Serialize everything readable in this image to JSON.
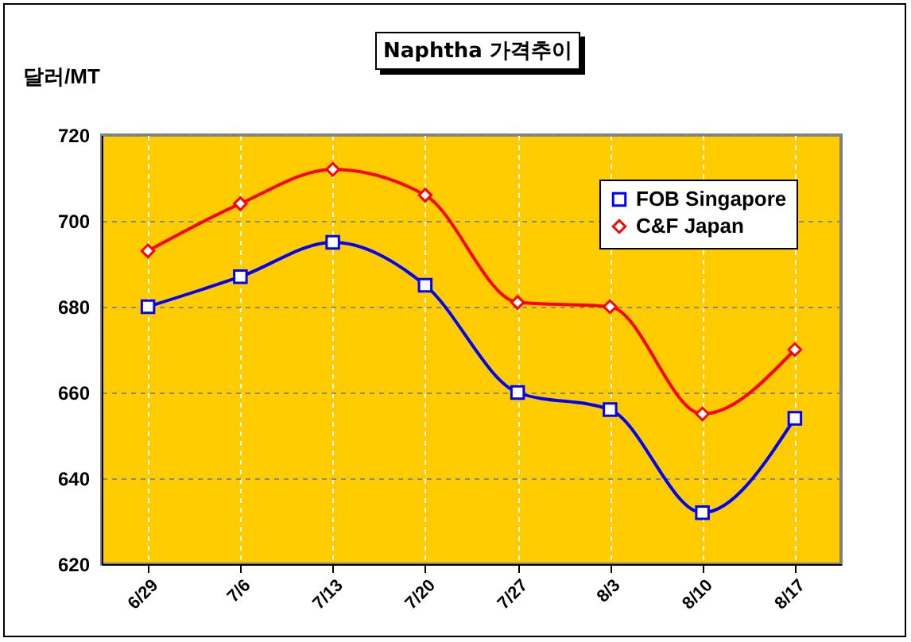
{
  "chart_data": {
    "type": "line",
    "title": "Naphtha 가격추이",
    "ylabel": "달러/MT",
    "categories": [
      "6/29",
      "7/6",
      "7/13",
      "7/20",
      "7/27",
      "8/3",
      "8/10",
      "8/17"
    ],
    "series": [
      {
        "name": "FOB Singapore",
        "color": "#0000ff",
        "marker": "square",
        "values": [
          680,
          687,
          695,
          685,
          660,
          656,
          632,
          654
        ]
      },
      {
        "name": "C&F Japan",
        "color": "#ff0000",
        "marker": "diamond",
        "values": [
          693,
          704,
          712,
          706,
          681,
          680,
          655,
          670
        ]
      }
    ],
    "ylim": [
      620,
      720
    ],
    "yticks": [
      620,
      640,
      660,
      680,
      700,
      720
    ],
    "grid": true,
    "legend": "top right"
  }
}
